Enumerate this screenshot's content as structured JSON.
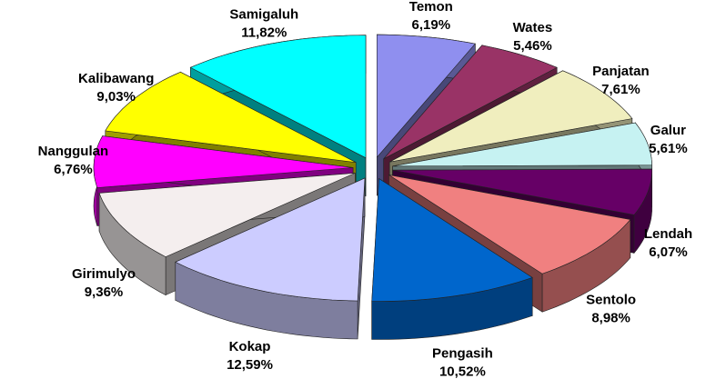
{
  "chart_data": {
    "type": "pie",
    "categories": [
      "Temon",
      "Wates",
      "Panjatan",
      "Galur",
      "Lendah",
      "Sentolo",
      "Pengasih",
      "Kokap",
      "Girimulyo",
      "Nanggulan",
      "Kalibawang",
      "Samigaluh"
    ],
    "values": [
      6.19,
      5.46,
      7.61,
      5.61,
      6.07,
      8.98,
      10.52,
      12.59,
      9.36,
      6.76,
      9.03,
      11.82
    ],
    "value_labels": [
      "6,19%",
      "5,46%",
      "7,61%",
      "5,61%",
      "6,07%",
      "8,98%",
      "10,52%",
      "12,59%",
      "9,36%",
      "6,76%",
      "9,03%",
      "11,82%"
    ],
    "colors": [
      "#8f8fef",
      "#993366",
      "#f0eebe",
      "#c6f2f2",
      "#660066",
      "#f08080",
      "#0066cc",
      "#ccccff",
      "#f4eeee",
      "#ff00ff",
      "#ffff00",
      "#00ffff"
    ]
  }
}
